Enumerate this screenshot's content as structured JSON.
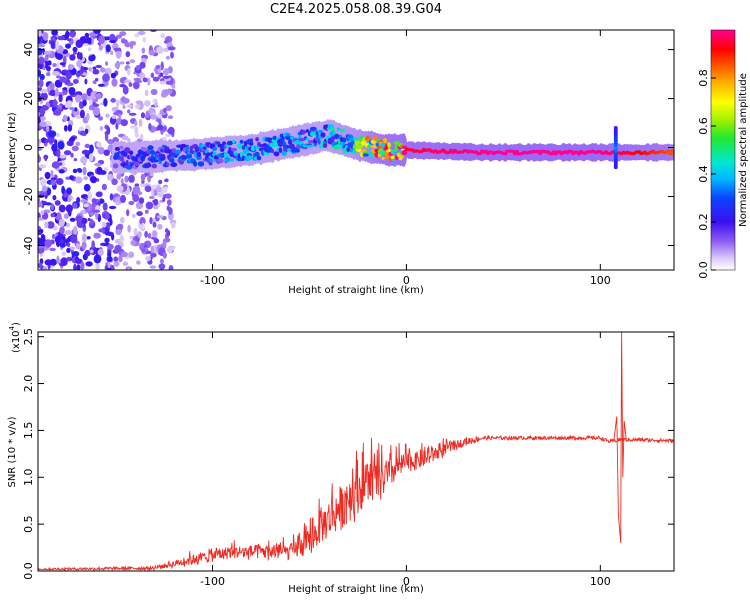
{
  "title": "C2E4.2025.058.08.39.G04",
  "colorbar": {
    "label": "Normalized spectral amplitude",
    "ticks": [
      "0.0",
      "0.2",
      "0.4",
      "0.6",
      "0.8"
    ],
    "tick_values": [
      0.0,
      0.2,
      0.4,
      0.6,
      0.8
    ],
    "range": [
      0,
      1
    ]
  },
  "chart_data": [
    {
      "type": "heatmap",
      "name": "spectrogram",
      "xlabel": "Height of straight line (km)",
      "ylabel": "Frequency (Hz)",
      "xlim": [
        -190,
        138
      ],
      "ylim": [
        -50,
        48
      ],
      "xticks": [
        -100,
        0,
        100
      ],
      "xtick_labels": [
        "-100",
        "0",
        "100"
      ],
      "yticks": [
        -40,
        -20,
        0,
        20,
        40
      ],
      "ytick_labels": [
        "-40",
        "-20",
        "0",
        "20",
        "40"
      ],
      "description_ridge": [
        {
          "x": -140,
          "f": -4,
          "amp": 0.25
        },
        {
          "x": -110,
          "f": -3,
          "amp": 0.3
        },
        {
          "x": -80,
          "f": -1,
          "amp": 0.35
        },
        {
          "x": -60,
          "f": 2,
          "amp": 0.35
        },
        {
          "x": -40,
          "f": 5,
          "amp": 0.35
        },
        {
          "x": -25,
          "f": 1,
          "amp": 0.55
        },
        {
          "x": -10,
          "f": -1,
          "amp": 0.9
        },
        {
          "x": 0,
          "f": -1,
          "amp": 0.95
        },
        {
          "x": 40,
          "f": -2,
          "amp": 1.0
        },
        {
          "x": 100,
          "f": -2,
          "amp": 1.0
        },
        {
          "x": 138,
          "f": -2,
          "amp": 0.85
        }
      ]
    },
    {
      "type": "line",
      "name": "snr",
      "xlabel": "Height of straight line (km)",
      "ylabel": "SNR (10 * v/v)",
      "yscale_label": "(x10",
      "yscale_exp": "4",
      "xlim": [
        -190,
        138
      ],
      "ylim": [
        0,
        2.55
      ],
      "xticks": [
        -100,
        0,
        100
      ],
      "xtick_labels": [
        "-100",
        "0",
        "100"
      ],
      "yticks": [
        0.0,
        0.5,
        1.0,
        1.5,
        2.0,
        2.5
      ],
      "ytick_labels": [
        "0.0",
        "0.5",
        "1.0",
        "1.5",
        "2.0",
        "2.5"
      ],
      "color": "#ee2a22",
      "envelope": {
        "x": [
          -190,
          -130,
          -110,
          -90,
          -75,
          -60,
          -50,
          -45,
          -40,
          -35,
          -30,
          -25,
          -20,
          -15,
          -10,
          -5,
          0,
          10,
          20,
          30,
          40,
          60,
          80,
          100,
          105,
          110,
          112,
          115,
          120,
          138
        ],
        "y": [
          0.02,
          0.03,
          0.12,
          0.2,
          0.2,
          0.2,
          0.3,
          0.45,
          0.55,
          0.65,
          0.75,
          0.85,
          0.95,
          0.95,
          1.0,
          1.1,
          1.15,
          1.2,
          1.3,
          1.38,
          1.42,
          1.42,
          1.42,
          1.42,
          1.38,
          1.4,
          1.4,
          1.4,
          1.4,
          1.39
        ]
      },
      "noise_amp": {
        "x": [
          -190,
          -130,
          -110,
          -90,
          -60,
          -50,
          -40,
          -30,
          -20,
          -10,
          0,
          20,
          30,
          40,
          138
        ],
        "y": [
          0.01,
          0.02,
          0.08,
          0.1,
          0.12,
          0.2,
          0.3,
          0.35,
          0.35,
          0.25,
          0.15,
          0.1,
          0.05,
          0.02,
          0.02
        ]
      },
      "spikes": [
        {
          "x": -18,
          "y": 1.42
        },
        {
          "x": 111,
          "y": 2.55
        },
        {
          "x": 110.5,
          "y": 0.3
        }
      ]
    }
  ]
}
